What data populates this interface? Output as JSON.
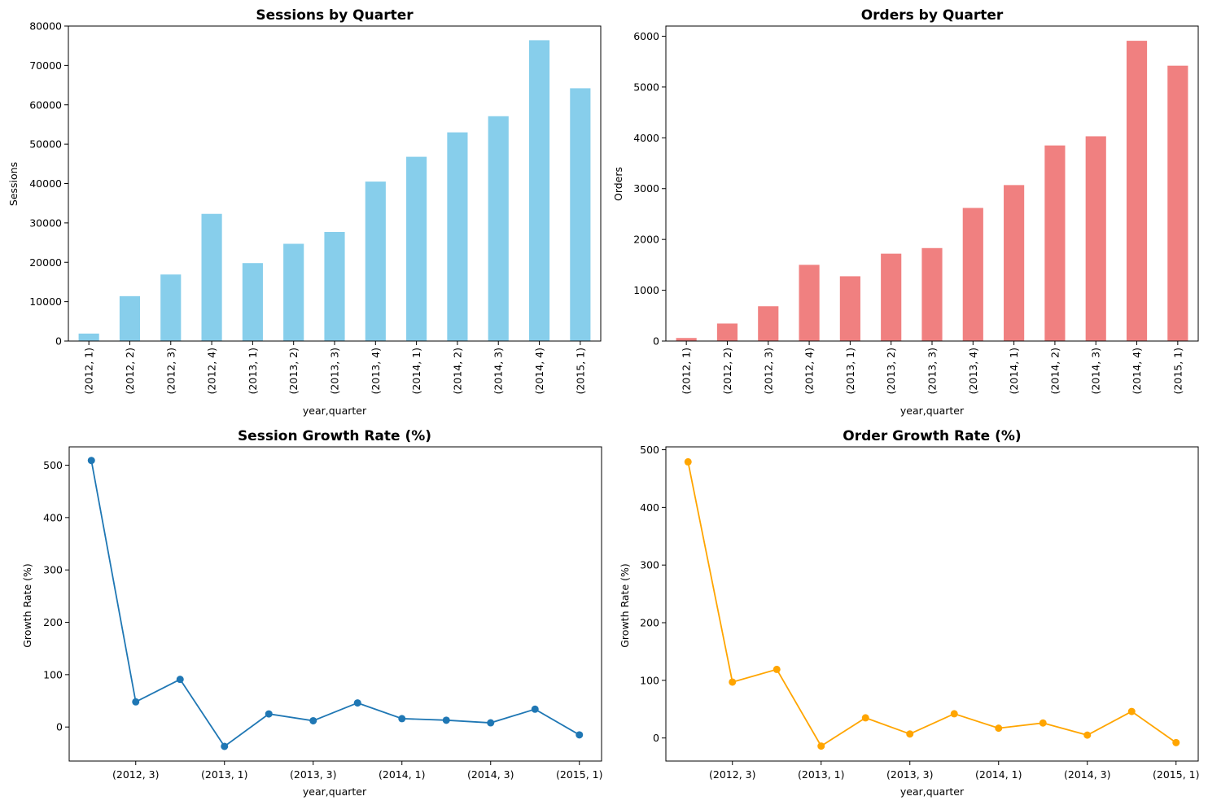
{
  "charts": [
    {
      "chart_data": {
        "type": "bar",
        "title": "Sessions by Quarter",
        "xlabel": "year,quarter",
        "ylabel": "Sessions",
        "categories": [
          "(2012, 1)",
          "(2012, 2)",
          "(2012, 3)",
          "(2012, 4)",
          "(2013, 1)",
          "(2013, 2)",
          "(2013, 3)",
          "(2013, 4)",
          "(2014, 1)",
          "(2014, 2)",
          "(2014, 3)",
          "(2014, 4)",
          "(2015, 1)"
        ],
        "values": [
          1900,
          11400,
          16900,
          32300,
          19800,
          24700,
          27700,
          40500,
          46800,
          53000,
          57100,
          76400,
          64200
        ],
        "ylim": [
          0,
          80000
        ],
        "yticks": [
          0,
          10000,
          20000,
          30000,
          40000,
          50000,
          60000,
          70000,
          80000
        ],
        "color": "#87ceeb"
      }
    },
    {
      "chart_data": {
        "type": "bar",
        "title": "Orders by Quarter",
        "xlabel": "year,quarter",
        "ylabel": "Orders",
        "categories": [
          "(2012, 1)",
          "(2012, 2)",
          "(2012, 3)",
          "(2012, 4)",
          "(2013, 1)",
          "(2013, 2)",
          "(2013, 3)",
          "(2013, 4)",
          "(2014, 1)",
          "(2014, 2)",
          "(2014, 3)",
          "(2014, 4)",
          "(2015, 1)"
        ],
        "values": [
          60,
          345,
          685,
          1500,
          1275,
          1720,
          1830,
          2620,
          3070,
          3850,
          4030,
          5910,
          5420
        ],
        "ylim": [
          0,
          6200
        ],
        "yticks": [
          0,
          1000,
          2000,
          3000,
          4000,
          5000,
          6000
        ],
        "color": "#f08080"
      }
    },
    {
      "chart_data": {
        "type": "line",
        "title": "Session Growth Rate (%)",
        "xlabel": "year,quarter",
        "ylabel": "Growth Rate (%)",
        "x_ticklabels": [
          "(2012, 3)",
          "(2013, 1)",
          "(2013, 3)",
          "(2014, 1)",
          "(2014, 3)",
          "(2015, 1)"
        ],
        "values": [
          509,
          48,
          91,
          -37,
          25,
          12,
          46,
          16,
          13,
          8,
          34,
          -15
        ],
        "ylim": [
          -65,
          535
        ],
        "yticks": [
          0,
          100,
          200,
          300,
          400,
          500
        ],
        "color": "#1f77b4",
        "marker": "circle"
      }
    },
    {
      "chart_data": {
        "type": "line",
        "title": "Order Growth Rate (%)",
        "xlabel": "year,quarter",
        "ylabel": "Growth Rate (%)",
        "x_ticklabels": [
          "(2012, 3)",
          "(2013, 1)",
          "(2013, 3)",
          "(2014, 1)",
          "(2014, 3)",
          "(2015, 1)"
        ],
        "values": [
          479,
          97,
          119,
          -14,
          35,
          7,
          42,
          17,
          26,
          5,
          46,
          -8
        ],
        "ylim": [
          -40,
          505
        ],
        "yticks": [
          0,
          100,
          200,
          300,
          400,
          500
        ],
        "color": "#ffa500",
        "marker": "circle"
      }
    }
  ]
}
